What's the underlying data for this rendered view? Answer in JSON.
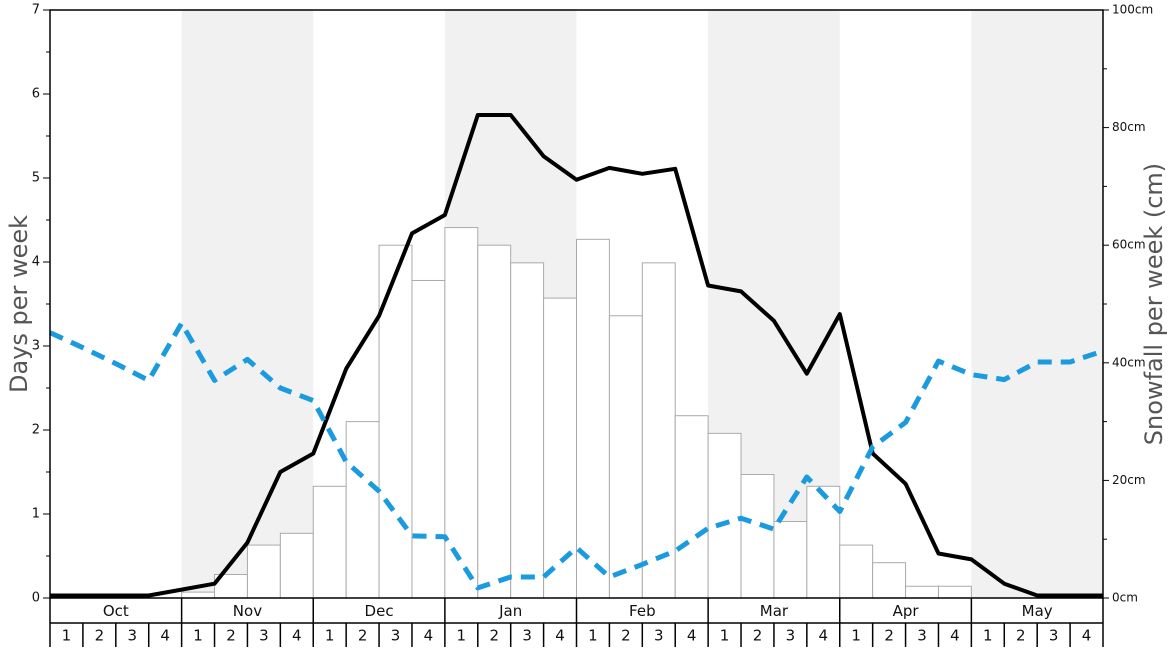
{
  "chart_data": {
    "type": "bar",
    "ylabel": "Days per week",
    "y2label": "Snowfall per week (cm)",
    "ylim": [
      0,
      7
    ],
    "y_ticks": [
      "0",
      "1",
      "2",
      "3",
      "4",
      "5",
      "6",
      "7"
    ],
    "y2lim": [
      0,
      100
    ],
    "y2_ticks": [
      "0cm",
      "20cm",
      "40cm",
      "60cm",
      "80cm",
      "100cm"
    ],
    "months": [
      "Oct",
      "Nov",
      "Dec",
      "Jan",
      "Feb",
      "Mar",
      "Apr",
      "May"
    ],
    "weeks": [
      "1",
      "2",
      "3",
      "4"
    ],
    "shaded_months": [
      "Nov",
      "Jan",
      "Mar",
      "May"
    ],
    "colors": {
      "shade": "#f1f1f1",
      "bar_fill": "#ffffff",
      "bar_stroke": "#aaaaaa",
      "solid_line": "#000000",
      "dashed_line": "#1a9be0",
      "axis": "#000000"
    },
    "series": [
      {
        "type": "bar",
        "axis": "y2",
        "values": [
          0,
          0,
          0,
          0,
          1,
          4,
          9,
          11,
          19,
          30,
          60,
          54,
          63,
          60,
          57,
          51,
          61,
          48,
          57,
          31,
          28,
          21,
          13,
          19,
          9,
          6,
          2,
          2,
          0,
          0,
          0,
          0
        ]
      },
      {
        "type": "line",
        "style": "solid",
        "axis": "y",
        "values": [
          0.03,
          0.03,
          0.03,
          0.03,
          0.1,
          0.17,
          0.66,
          1.5,
          1.72,
          2.73,
          3.36,
          4.34,
          4.56,
          5.75,
          5.75,
          5.26,
          4.98,
          5.12,
          5.05,
          5.11,
          3.72,
          3.65,
          3.3,
          2.67,
          3.38,
          1.72,
          1.36,
          0.53,
          0.46,
          0.17,
          0.03,
          0.03,
          0.03
        ]
      },
      {
        "type": "line",
        "style": "dashed",
        "axis": "y",
        "values": [
          3.16,
          2.98,
          2.79,
          2.59,
          3.27,
          2.59,
          2.84,
          2.5,
          2.35,
          1.62,
          1.27,
          0.74,
          0.73,
          0.12,
          0.25,
          0.25,
          0.6,
          0.25,
          0.4,
          0.56,
          0.83,
          0.95,
          0.82,
          1.44,
          1.03,
          1.8,
          2.09,
          2.82,
          2.66,
          2.6,
          2.81,
          2.81,
          2.94
        ]
      }
    ]
  }
}
